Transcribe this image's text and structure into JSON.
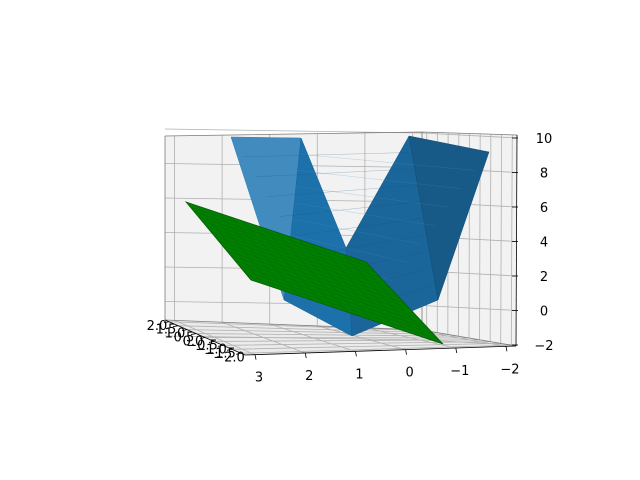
{
  "chart_data": {
    "type": "surface3d",
    "title": "",
    "xlabel": "",
    "ylabel": "",
    "zlabel": "",
    "x_tick_labels": [
      "3",
      "2",
      "1",
      "0",
      "−1",
      "−2"
    ],
    "y_tick_labels": [
      "2.0",
      "1.5",
      "1.0",
      "0.5",
      "0.0",
      "−0.5",
      "−1.0",
      "−1.5",
      "−2.0"
    ],
    "z_tick_labels": [
      "−2",
      "0",
      "2",
      "4",
      "6",
      "8",
      "10"
    ],
    "xlim": [
      -2,
      3
    ],
    "ylim": [
      -2,
      2
    ],
    "zlim": [
      -2,
      10
    ],
    "grid": true,
    "series": [
      {
        "kind": "surface",
        "color": "#1f77b4",
        "z_min": 0,
        "z_max": 10,
        "shape": "paraboloid"
      },
      {
        "kind": "plane",
        "color": "#008000",
        "z_min": -2,
        "z_max": 6
      }
    ]
  }
}
